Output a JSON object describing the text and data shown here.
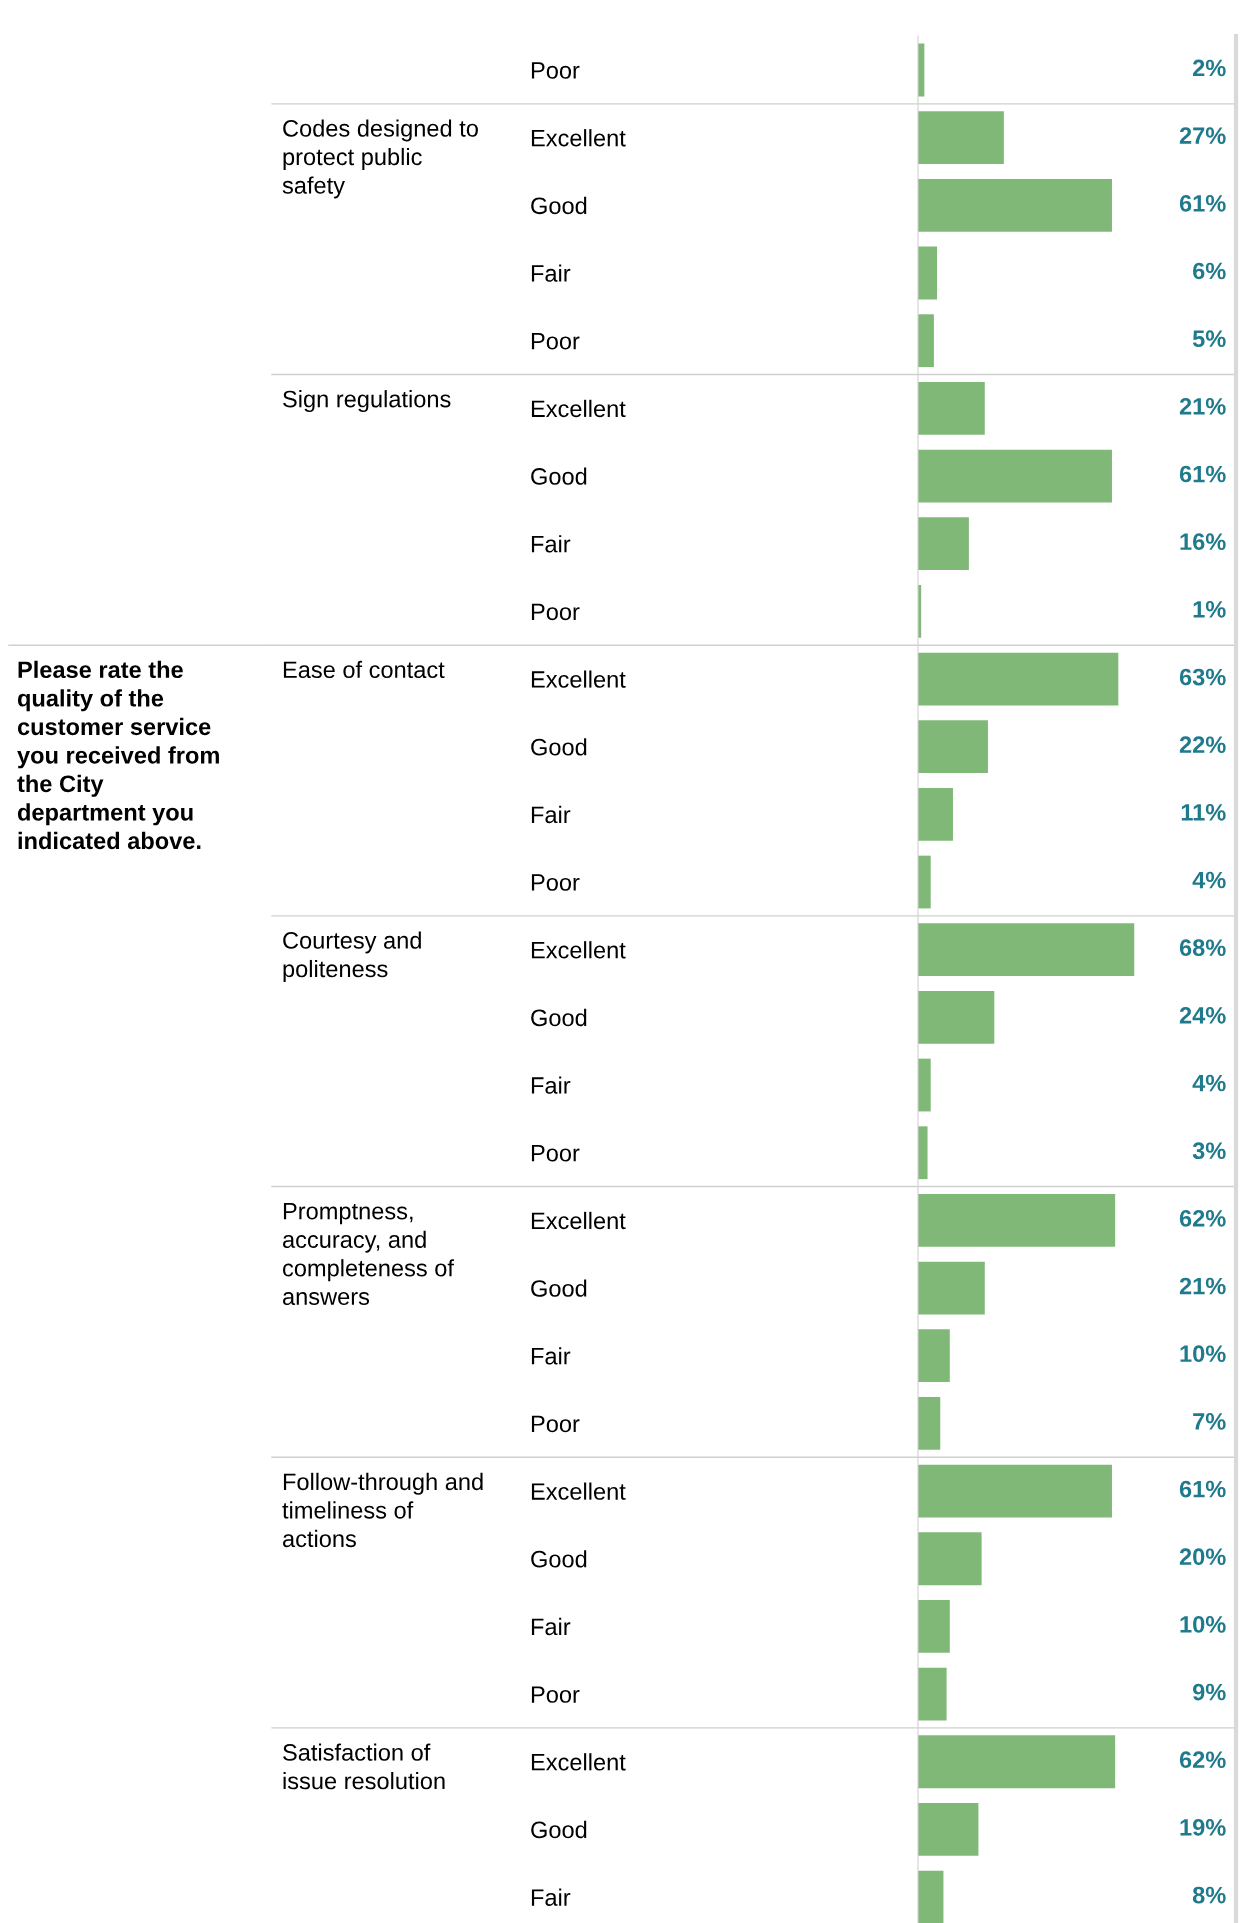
{
  "chart_data": {
    "type": "bar",
    "orientation": "horizontal",
    "tick_labels": "y",
    "color": "#80b878",
    "xlim": [
      0,
      100
    ],
    "categories": [
      "Poor",
      "Excellent",
      "Good",
      "Fair",
      "Poor",
      "Excellent",
      "Good",
      "Fair",
      "Poor",
      "Excellent",
      "Good",
      "Fair",
      "Poor",
      "Excellent",
      "Good",
      "Fair",
      "Poor",
      "Excellent",
      "Good",
      "Fair",
      "Poor",
      "Excellent",
      "Good",
      "Fair",
      "Poor",
      "Excellent",
      "Good",
      "Fair"
    ],
    "values": [
      2,
      27,
      61,
      6,
      5,
      21,
      61,
      16,
      1,
      63,
      22,
      11,
      4,
      68,
      24,
      4,
      3,
      62,
      21,
      10,
      7,
      61,
      20,
      10,
      9,
      62,
      19,
      8
    ],
    "value_labels": [
      "2%",
      "27%",
      "61%",
      "6%",
      "5%",
      "21%",
      "61%",
      "16%",
      "1%",
      "63%",
      "22%",
      "11%",
      "4%",
      "68%",
      "24%",
      "4%",
      "3%",
      "62%",
      "21%",
      "10%",
      "7%",
      "61%",
      "20%",
      "10%",
      "9%",
      "62%",
      "19%",
      "8%"
    ],
    "annotations": [
      "Please rate the\nquality of the\ncustomer service\nyou received from\nthe City\ndepartment you\nindicated above.",
      "Codes designed to\nprotect public\nsafety",
      "Sign regulations",
      "Ease of contact",
      "Courtesy and\npoliteness",
      "Promptness,\naccuracy, and\ncompleteness of\nanswers",
      "Follow-through and\ntimeliness of\nactions",
      "Satisfaction of\nissue resolution"
    ]
  }
}
